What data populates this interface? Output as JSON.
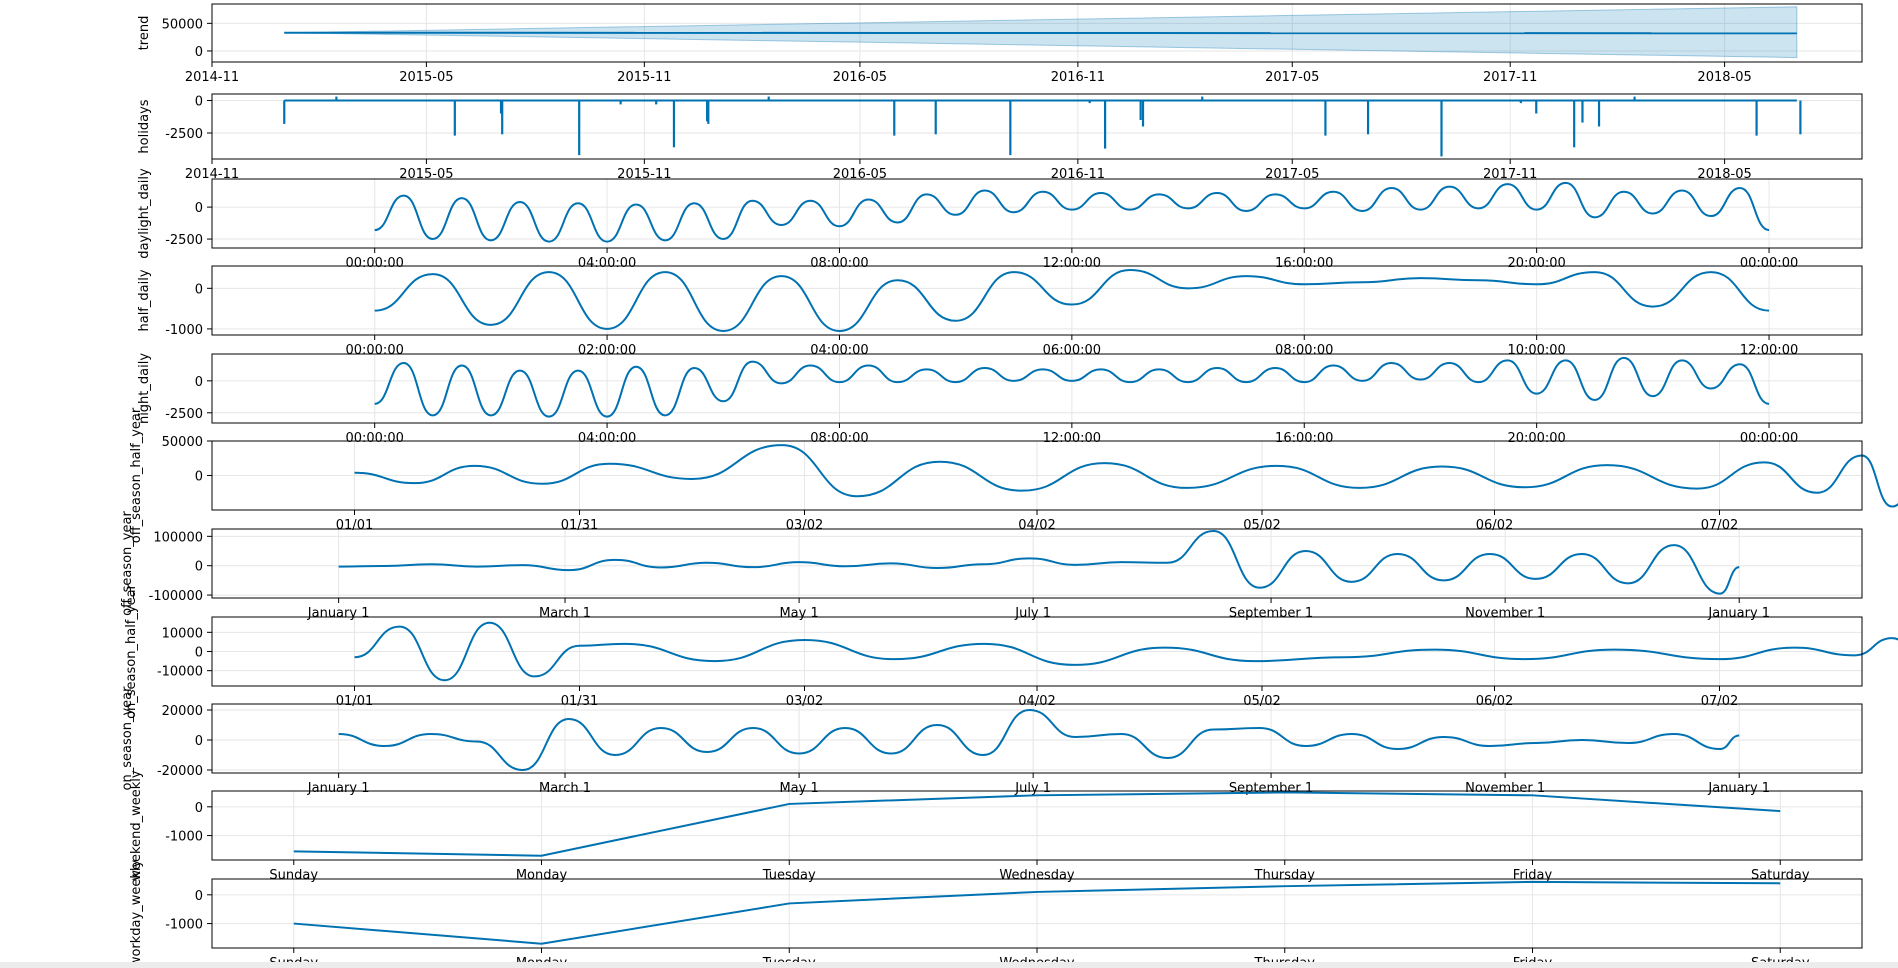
{
  "colors": {
    "line": "#0072B2",
    "band": "#0072B2",
    "grid": "#e6e6e6",
    "axis": "#000000"
  },
  "chart_data": [
    {
      "name": "trend",
      "type": "line",
      "ylabel": "trend",
      "x_kind": "date",
      "x": [
        "2015-01-01",
        "2018-07-01"
      ],
      "values": [
        33000,
        32000
      ],
      "band": {
        "lower": [
          33000,
          -12000
        ],
        "upper": [
          33000,
          80000
        ]
      },
      "ylim": [
        -20000,
        85000
      ],
      "yticks": [
        0,
        50000
      ],
      "ytick_labels": [
        "0",
        "50000"
      ],
      "xlim": [
        "2014-11-01",
        "2018-08-25"
      ],
      "xticks": [
        "2014-11-01",
        "2015-05-01",
        "2015-11-01",
        "2016-05-01",
        "2016-11-01",
        "2017-05-01",
        "2017-11-01",
        "2018-05-01"
      ],
      "xtick_labels": [
        "2014-11",
        "2015-05",
        "2015-11",
        "2016-05",
        "2016-11",
        "2017-05",
        "2017-11",
        "2018-05"
      ]
    },
    {
      "name": "holidays",
      "type": "spikes",
      "ylabel": "holidays",
      "x_kind": "date",
      "x": [
        "2015-01-01",
        "2018-07-01"
      ],
      "baseline": 0,
      "spikes": [
        {
          "x": "2015-01-01",
          "v": -1800
        },
        {
          "x": "2015-02-14",
          "v": 300
        },
        {
          "x": "2015-05-25",
          "v": -2700
        },
        {
          "x": "2015-07-03",
          "v": -1000
        },
        {
          "x": "2015-07-04",
          "v": -2600
        },
        {
          "x": "2015-09-07",
          "v": -4200
        },
        {
          "x": "2015-10-12",
          "v": -300
        },
        {
          "x": "2015-11-11",
          "v": -300
        },
        {
          "x": "2015-11-26",
          "v": -3600
        },
        {
          "x": "2015-12-24",
          "v": -1600
        },
        {
          "x": "2015-12-25",
          "v": -1800
        },
        {
          "x": "2016-02-14",
          "v": 300
        },
        {
          "x": "2016-05-30",
          "v": -2700
        },
        {
          "x": "2016-07-04",
          "v": -2600
        },
        {
          "x": "2016-09-05",
          "v": -4200
        },
        {
          "x": "2016-11-11",
          "v": -200
        },
        {
          "x": "2016-11-24",
          "v": -3700
        },
        {
          "x": "2016-12-24",
          "v": -1500
        },
        {
          "x": "2016-12-26",
          "v": -2000
        },
        {
          "x": "2017-02-14",
          "v": 300
        },
        {
          "x": "2017-05-29",
          "v": -2700
        },
        {
          "x": "2017-07-04",
          "v": -2600
        },
        {
          "x": "2017-09-04",
          "v": -4300
        },
        {
          "x": "2017-11-10",
          "v": -200
        },
        {
          "x": "2017-11-23",
          "v": -1000
        },
        {
          "x": "2017-12-25",
          "v": -3600
        },
        {
          "x": "2018-01-01",
          "v": -1700
        },
        {
          "x": "2018-01-15",
          "v": -2000
        },
        {
          "x": "2018-02-14",
          "v": 300
        },
        {
          "x": "2018-05-28",
          "v": -2700
        },
        {
          "x": "2018-07-04",
          "v": -2600
        }
      ],
      "ylim": [
        -4500,
        500
      ],
      "yticks": [
        -2500,
        0
      ],
      "ytick_labels": [
        "-2500",
        "0"
      ],
      "xlim": [
        "2014-11-01",
        "2018-08-25"
      ],
      "xticks": [
        "2014-11-01",
        "2015-05-01",
        "2015-11-01",
        "2016-05-01",
        "2016-11-01",
        "2017-05-01",
        "2017-11-01",
        "2018-05-01"
      ],
      "xtick_labels": [
        "2014-11",
        "2015-05",
        "2015-11",
        "2016-05",
        "2016-11",
        "2017-05",
        "2017-11",
        "2018-05"
      ]
    },
    {
      "name": "daylight_daily",
      "type": "line",
      "ylabel": "daylight_daily",
      "x_kind": "hours",
      "xlim": [
        -2.8,
        25.6
      ],
      "x": [
        0,
        0.5,
        1,
        1.5,
        2,
        2.5,
        3,
        3.5,
        4,
        4.5,
        5,
        5.5,
        6,
        6.5,
        7,
        7.5,
        8,
        8.5,
        9,
        9.5,
        10,
        10.5,
        11,
        11.5,
        12,
        12.5,
        13,
        13.5,
        14,
        14.5,
        15,
        15.5,
        16,
        16.5,
        17,
        17.5,
        18,
        18.5,
        19,
        19.5,
        20,
        20.5,
        21,
        21.5,
        22,
        22.5,
        23,
        23.5,
        24
      ],
      "values": [
        -1800,
        900,
        -2500,
        700,
        -2600,
        400,
        -2700,
        300,
        -2700,
        200,
        -2600,
        300,
        -2500,
        500,
        -1400,
        500,
        -1500,
        600,
        -1200,
        1000,
        -600,
        1300,
        -400,
        1200,
        -200,
        1100,
        -200,
        1000,
        -100,
        1100,
        -300,
        1000,
        -100,
        1200,
        -300,
        1500,
        -200,
        1600,
        -100,
        1800,
        -200,
        1900,
        -800,
        1200,
        -500,
        1300,
        -700,
        1500,
        -1800
      ],
      "ylim": [
        -3200,
        2200
      ],
      "yticks": [
        -2500,
        0
      ],
      "ytick_labels": [
        "-2500",
        "0"
      ],
      "xticks": [
        0,
        4,
        8,
        12,
        16,
        20,
        24
      ],
      "xtick_labels": [
        "00:00:00",
        "04:00:00",
        "08:00:00",
        "12:00:00",
        "16:00:00",
        "20:00:00",
        "00:00:00"
      ]
    },
    {
      "name": "half_daily",
      "type": "line",
      "ylabel": "half_daily",
      "x_kind": "hours",
      "xlim": [
        -1.4,
        12.8
      ],
      "x": [
        0,
        0.5,
        1,
        1.5,
        2,
        2.5,
        3,
        3.5,
        4,
        4.5,
        5,
        5.5,
        6,
        6.5,
        7,
        7.5,
        8,
        8.5,
        9,
        9.5,
        10,
        10.5,
        11,
        11.5,
        12
      ],
      "values": [
        -550,
        350,
        -900,
        400,
        -1000,
        400,
        -1050,
        300,
        -1050,
        200,
        -800,
        400,
        -400,
        450,
        0,
        300,
        100,
        150,
        250,
        200,
        100,
        400,
        -450,
        400,
        -550
      ],
      "ylim": [
        -1150,
        550
      ],
      "yticks": [
        -1000,
        0
      ],
      "ytick_labels": [
        "-1000",
        "0"
      ],
      "xticks": [
        0,
        2,
        4,
        6,
        8,
        10,
        12
      ],
      "xtick_labels": [
        "00:00:00",
        "02:00:00",
        "04:00:00",
        "06:00:00",
        "08:00:00",
        "10:00:00",
        "12:00:00"
      ]
    },
    {
      "name": "night_daily",
      "type": "line",
      "ylabel": "night_daily",
      "x_kind": "hours",
      "xlim": [
        -2.8,
        25.6
      ],
      "x": [
        0,
        0.5,
        1,
        1.5,
        2,
        2.5,
        3,
        3.5,
        4,
        4.5,
        5,
        5.5,
        6,
        6.5,
        7,
        7.5,
        8,
        8.5,
        9,
        9.5,
        10,
        10.5,
        11,
        11.5,
        12,
        12.5,
        13,
        13.5,
        14,
        14.5,
        15,
        15.5,
        16,
        16.5,
        17,
        17.5,
        18,
        18.5,
        19,
        19.5,
        20,
        20.5,
        21,
        21.5,
        22,
        22.5,
        23,
        23.5,
        24
      ],
      "values": [
        -1800,
        1400,
        -2700,
        1200,
        -2700,
        800,
        -2800,
        800,
        -2800,
        1100,
        -2700,
        1000,
        -1600,
        1500,
        -200,
        1200,
        -100,
        1200,
        -100,
        900,
        -100,
        1000,
        0,
        900,
        0,
        900,
        -100,
        900,
        -100,
        1000,
        -100,
        1000,
        -100,
        1200,
        0,
        1400,
        100,
        1400,
        -100,
        1600,
        -1000,
        1600,
        -1500,
        1800,
        -1200,
        1600,
        -600,
        1300,
        -1800
      ],
      "ylim": [
        -3300,
        2100
      ],
      "yticks": [
        -2500,
        0
      ],
      "ytick_labels": [
        "-2500",
        "0"
      ],
      "xticks": [
        0,
        4,
        8,
        12,
        16,
        20,
        24
      ],
      "xtick_labels": [
        "00:00:00",
        "04:00:00",
        "08:00:00",
        "12:00:00",
        "16:00:00",
        "20:00:00",
        "00:00:00"
      ]
    },
    {
      "name": "off_season_half_year",
      "type": "line",
      "ylabel": "off_season_half_year",
      "x_kind": "days",
      "xlim": [
        -19,
        201
      ],
      "x": [
        0,
        8,
        16,
        25,
        34,
        45,
        57,
        67,
        78,
        89,
        100,
        111,
        123,
        134,
        145,
        156,
        167,
        179,
        188,
        195,
        201,
        205,
        209
      ],
      "values": [
        4000,
        -11000,
        14000,
        -12000,
        17000,
        -5000,
        44000,
        -30000,
        20000,
        -22000,
        18000,
        -18000,
        14000,
        -18000,
        13000,
        -17000,
        15000,
        -19000,
        19000,
        -25000,
        29000,
        -45000,
        4000
      ],
      "ylim": [
        -50000,
        50000
      ],
      "yticks": [
        0,
        50000
      ],
      "ytick_labels": [
        "0",
        "50000"
      ],
      "xticks": [
        0,
        30,
        60,
        91,
        121,
        152,
        182
      ],
      "xtick_labels": [
        "01/01",
        "01/31",
        "03/02",
        "04/02",
        "05/02",
        "06/02",
        "07/02"
      ]
    },
    {
      "name": "off_season_year",
      "type": "line",
      "ylabel": "off_season_year",
      "x_kind": "days",
      "xlim": [
        -33,
        397
      ],
      "x": [
        0,
        12,
        24,
        36,
        48,
        60,
        72,
        84,
        96,
        108,
        120,
        132,
        144,
        156,
        168,
        180,
        192,
        204,
        216,
        228,
        240,
        252,
        264,
        276,
        288,
        300,
        312,
        324,
        336,
        348,
        360,
        365
      ],
      "values": [
        -3000,
        -1000,
        5000,
        -3000,
        2000,
        -15000,
        20000,
        -6000,
        10000,
        -5000,
        12000,
        -2000,
        8000,
        -8000,
        5000,
        25000,
        3000,
        12000,
        10000,
        118000,
        -75000,
        50000,
        -55000,
        40000,
        -50000,
        40000,
        -45000,
        40000,
        -60000,
        70000,
        -95000,
        -5000
      ],
      "ylim": [
        -110000,
        125000
      ],
      "yticks": [
        -100000,
        0,
        100000
      ],
      "ytick_labels": [
        "-100000",
        "0",
        "100000"
      ],
      "xticks": [
        0,
        59,
        120,
        181,
        243,
        304,
        365
      ],
      "xtick_labels": [
        "January 1",
        "March 1",
        "May 1",
        "July 1",
        "September 1",
        "November 1",
        "January 1"
      ]
    },
    {
      "name": "on_season_half_year",
      "type": "line",
      "ylabel": "on_season_half_year",
      "x_kind": "days",
      "xlim": [
        -19,
        201
      ],
      "x": [
        0,
        6,
        12,
        18,
        24,
        30,
        36,
        48,
        60,
        72,
        84,
        96,
        108,
        120,
        132,
        144,
        156,
        168,
        182,
        192,
        200,
        205,
        209
      ],
      "values": [
        -3000,
        13000,
        -15000,
        15000,
        -13000,
        3000,
        4000,
        -5000,
        6000,
        -4000,
        4000,
        -7000,
        2000,
        -5000,
        -3000,
        1000,
        -4000,
        1000,
        -4000,
        2000,
        -2000,
        7000,
        -3000
      ],
      "ylim": [
        -18000,
        18000
      ],
      "yticks": [
        -10000,
        0,
        10000
      ],
      "ytick_labels": [
        "-10000",
        "0",
        "10000"
      ],
      "xticks": [
        0,
        30,
        60,
        91,
        121,
        152,
        182
      ],
      "xtick_labels": [
        "01/01",
        "01/31",
        "03/02",
        "04/02",
        "05/02",
        "06/02",
        "07/02"
      ]
    },
    {
      "name": "on_season_year",
      "type": "line",
      "ylabel": "on_season_year",
      "x_kind": "days",
      "xlim": [
        -33,
        397
      ],
      "x": [
        0,
        12,
        24,
        36,
        48,
        60,
        72,
        84,
        96,
        108,
        120,
        132,
        144,
        156,
        168,
        180,
        192,
        204,
        216,
        228,
        240,
        252,
        264,
        276,
        288,
        300,
        312,
        324,
        336,
        348,
        360,
        365
      ],
      "values": [
        4000,
        -4000,
        4000,
        -1000,
        -20000,
        14000,
        -10000,
        8000,
        -8000,
        8000,
        -9000,
        8000,
        -9000,
        10000,
        -10000,
        20000,
        2000,
        4000,
        -12000,
        7000,
        8000,
        -4000,
        4000,
        -6000,
        2000,
        -4000,
        -2000,
        0,
        -2000,
        4000,
        -6000,
        3000
      ],
      "ylim": [
        -22000,
        24000
      ],
      "yticks": [
        -20000,
        0,
        20000
      ],
      "ytick_labels": [
        "-20000",
        "0",
        "20000"
      ],
      "xticks": [
        0,
        59,
        120,
        181,
        243,
        304,
        365
      ],
      "xtick_labels": [
        "January 1",
        "March 1",
        "May 1",
        "July 1",
        "September 1",
        "November 1",
        "January 1"
      ]
    },
    {
      "name": "weekend_weekly",
      "type": "line",
      "ylabel": "weekend_weekly",
      "x_kind": "index",
      "xlim": [
        -0.33,
        6.33
      ],
      "x": [
        0,
        1,
        2,
        3,
        4,
        5,
        6
      ],
      "values": [
        -1550,
        -1700,
        100,
        400,
        500,
        400,
        -150
      ],
      "ylim": [
        -1850,
        550
      ],
      "yticks": [
        -1000,
        0
      ],
      "ytick_labels": [
        "-1000",
        "0"
      ],
      "xticks": [
        0,
        1,
        2,
        3,
        4,
        5,
        6
      ],
      "xtick_labels": [
        "Sunday",
        "Monday",
        "Tuesday",
        "Wednesday",
        "Thursday",
        "Friday",
        "Saturday"
      ]
    },
    {
      "name": "workday_weekly",
      "type": "line",
      "ylabel": "workday_weekly",
      "x_kind": "index",
      "xlim": [
        -0.33,
        6.33
      ],
      "x": [
        0,
        1,
        2,
        3,
        4,
        5,
        6
      ],
      "values": [
        -1000,
        -1700,
        -300,
        100,
        300,
        450,
        400
      ],
      "ylim": [
        -1850,
        550
      ],
      "yticks": [
        -1000,
        0
      ],
      "ytick_labels": [
        "-1000",
        "0"
      ],
      "xticks": [
        0,
        1,
        2,
        3,
        4,
        5,
        6
      ],
      "xtick_labels": [
        "Sunday",
        "Monday",
        "Tuesday",
        "Wednesday",
        "Thursday",
        "Friday",
        "Saturday"
      ]
    }
  ]
}
